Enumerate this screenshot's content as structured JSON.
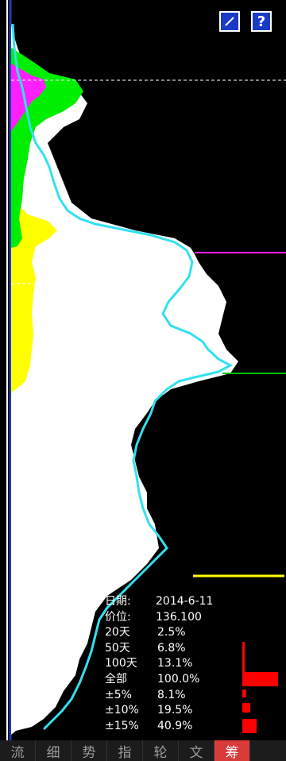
{
  "toolbar": {
    "edit_icon": "pencil-icon",
    "help_label": "?"
  },
  "stats": {
    "date_label": "日期:",
    "date_value": "2014-6-11",
    "price_label": "价位:",
    "price_value": "136.100",
    "rows": [
      {
        "label": "20天",
        "value": "2.5%"
      },
      {
        "label": "50天",
        "value": "6.8%"
      },
      {
        "label": "100天",
        "value": "13.1%"
      },
      {
        "label": "全部",
        "value": "100.0%"
      },
      {
        "label": "±5%",
        "value": "8.1%"
      },
      {
        "label": "±10%",
        "value": "19.5%"
      },
      {
        "label": "±15%",
        "value": "40.9%"
      }
    ]
  },
  "tabs": [
    {
      "label": "流",
      "active": false
    },
    {
      "label": "细",
      "active": false
    },
    {
      "label": "势",
      "active": false
    },
    {
      "label": "指",
      "active": false
    },
    {
      "label": "轮",
      "active": false
    },
    {
      "label": "文",
      "active": false
    },
    {
      "label": "筹",
      "active": true
    }
  ],
  "colors": {
    "background": "#000000",
    "chip": "#ffffff",
    "avg_cost_line": "#33e0f0",
    "recent_20": "#ff20ff",
    "recent_50": "#00ee00",
    "recent_100": "#ffff00",
    "bars": "#ff0000",
    "tab_active": "#d93a3a"
  }
}
